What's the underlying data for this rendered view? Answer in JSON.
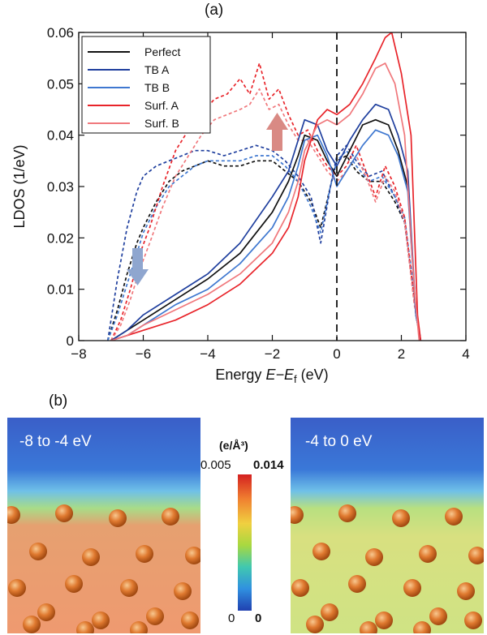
{
  "panel_a": {
    "tag": "(a)"
  },
  "panel_b": {
    "tag": "(b)",
    "left_label": "-8 to -4 eV",
    "right_label": "-4 to 0 eV",
    "colorbar": {
      "unit": "(e/Å³)",
      "top_left": "0.005",
      "top_right": "0.014",
      "bottom_left": "0",
      "bottom_right": "0"
    }
  },
  "colors": {
    "perfect": "#111111",
    "tb_a": "#1f3f9e",
    "tb_b": "#3f78d0",
    "surf_a": "#e8242a",
    "surf_b": "#f0787c",
    "arrow_up": "#d98a84",
    "arrow_down": "#8fa6cf",
    "map_bg": "#3a5fc8",
    "atom": "#d8702a"
  },
  "chart_data": {
    "type": "line",
    "title": "",
    "xlabel": "Energy",
    "xlabel_var": "E−E",
    "xlabel_sub": "f",
    "xlabel_unit": "(eV)",
    "ylabel": "LDOS (1/eV)",
    "xlim": [
      -8,
      4
    ],
    "ylim": [
      0,
      0.06
    ],
    "xticks": [
      -8,
      -6,
      -4,
      -2,
      0,
      2,
      4
    ],
    "yticks": [
      0,
      0.01,
      0.02,
      0.03,
      0.04,
      0.05,
      0.06
    ],
    "ytick_labels": [
      "0",
      "0.01",
      "0.02",
      "0.03",
      "0.04",
      "0.05",
      "0.06"
    ],
    "fermi_line_x": 0,
    "legend": [
      "Perfect",
      "TB A",
      "TB B",
      "Surf. A",
      "Surf. B"
    ],
    "legend_position": "top-left",
    "series": [
      {
        "name": "Perfect",
        "style": "solid",
        "color": "#111111",
        "x": [
          -7,
          -6.5,
          -6,
          -5,
          -4,
          -3,
          -2,
          -1.5,
          -1.2,
          -1,
          -0.6,
          -0.3,
          0,
          0.4,
          0.8,
          1.2,
          1.6,
          1.9,
          2.2,
          2.45,
          2.6
        ],
        "y": [
          0,
          0.002,
          0.004,
          0.008,
          0.012,
          0.017,
          0.025,
          0.031,
          0.036,
          0.04,
          0.039,
          0.035,
          0.032,
          0.037,
          0.042,
          0.043,
          0.042,
          0.037,
          0.03,
          0.005,
          0
        ]
      },
      {
        "name": "TB A",
        "style": "solid",
        "color": "#1f3f9e",
        "x": [
          -7,
          -6.5,
          -6,
          -5,
          -4,
          -3,
          -2,
          -1.5,
          -1.2,
          -1,
          -0.6,
          -0.3,
          0,
          0.4,
          0.8,
          1.2,
          1.6,
          1.9,
          2.2,
          2.45,
          2.6
        ],
        "y": [
          0,
          0.002,
          0.005,
          0.009,
          0.013,
          0.019,
          0.028,
          0.033,
          0.039,
          0.043,
          0.042,
          0.037,
          0.034,
          0.039,
          0.043,
          0.046,
          0.045,
          0.04,
          0.033,
          0.005,
          0
        ]
      },
      {
        "name": "TB B",
        "style": "solid",
        "color": "#3f78d0",
        "x": [
          -7,
          -6.5,
          -6,
          -5,
          -4,
          -3,
          -2,
          -1.5,
          -1.2,
          -1,
          -0.6,
          -0.3,
          0,
          0.4,
          0.8,
          1.2,
          1.6,
          1.9,
          2.2,
          2.45,
          2.6
        ],
        "y": [
          0,
          0.001,
          0.003,
          0.007,
          0.01,
          0.015,
          0.022,
          0.028,
          0.034,
          0.039,
          0.04,
          0.036,
          0.03,
          0.034,
          0.038,
          0.041,
          0.04,
          0.036,
          0.029,
          0.005,
          0
        ]
      },
      {
        "name": "Surf. A",
        "style": "solid",
        "color": "#e8242a",
        "x": [
          -7,
          -6.5,
          -6,
          -5,
          -4,
          -3,
          -2,
          -1.5,
          -1.2,
          -1,
          -0.6,
          -0.3,
          0,
          0.4,
          0.8,
          1.2,
          1.5,
          1.7,
          2.0,
          2.3,
          2.5,
          2.6
        ],
        "y": [
          0,
          0.001,
          0.002,
          0.004,
          0.007,
          0.011,
          0.017,
          0.022,
          0.028,
          0.035,
          0.043,
          0.045,
          0.044,
          0.046,
          0.05,
          0.055,
          0.059,
          0.06,
          0.052,
          0.04,
          0.005,
          0
        ]
      },
      {
        "name": "Surf. B",
        "style": "solid",
        "color": "#f0787c",
        "x": [
          -7,
          -6.5,
          -6,
          -5,
          -4,
          -3,
          -2,
          -1.5,
          -1.2,
          -1,
          -0.6,
          -0.3,
          0,
          0.4,
          0.8,
          1.2,
          1.5,
          1.8,
          2.1,
          2.4,
          2.55
        ],
        "y": [
          0,
          0.001,
          0.003,
          0.006,
          0.009,
          0.013,
          0.019,
          0.025,
          0.031,
          0.037,
          0.042,
          0.043,
          0.042,
          0.044,
          0.048,
          0.053,
          0.054,
          0.05,
          0.04,
          0.01,
          0
        ]
      },
      {
        "name": "Perfect (dashed)",
        "style": "dashed",
        "color": "#111111",
        "x": [
          -7.1,
          -6.8,
          -6.5,
          -6.2,
          -6,
          -5.6,
          -5.2,
          -4.8,
          -4.4,
          -4,
          -3.5,
          -3,
          -2.5,
          -2,
          -1.6,
          -1.2,
          -0.8,
          -0.5,
          -0.2,
          0,
          0.3,
          0.6,
          1,
          1.4,
          1.8,
          2.1,
          2.4,
          2.6
        ],
        "y": [
          0,
          0.006,
          0.013,
          0.019,
          0.022,
          0.027,
          0.031,
          0.033,
          0.034,
          0.035,
          0.034,
          0.034,
          0.035,
          0.035,
          0.033,
          0.031,
          0.027,
          0.022,
          0.03,
          0.035,
          0.036,
          0.033,
          0.031,
          0.031,
          0.027,
          0.023,
          0.008,
          0
        ]
      },
      {
        "name": "TB A (dashed)",
        "style": "dashed",
        "color": "#1f3f9e",
        "x": [
          -7.1,
          -6.8,
          -6.5,
          -6.2,
          -6,
          -5.6,
          -5.2,
          -4.8,
          -4.4,
          -4,
          -3.5,
          -3,
          -2.5,
          -2,
          -1.6,
          -1.2,
          -0.8,
          -0.5,
          -0.2,
          0,
          0.3,
          0.6,
          1,
          1.4,
          1.8,
          2.1,
          2.4,
          2.6
        ],
        "y": [
          0,
          0.012,
          0.022,
          0.029,
          0.032,
          0.034,
          0.035,
          0.036,
          0.037,
          0.037,
          0.036,
          0.037,
          0.038,
          0.037,
          0.035,
          0.032,
          0.028,
          0.019,
          0.03,
          0.036,
          0.038,
          0.035,
          0.032,
          0.033,
          0.028,
          0.023,
          0.008,
          0
        ]
      },
      {
        "name": "TB B (dashed)",
        "style": "dashed",
        "color": "#3f78d0",
        "x": [
          -7.1,
          -6.8,
          -6.5,
          -6.2,
          -6,
          -5.6,
          -5.2,
          -4.8,
          -4.4,
          -4,
          -3.5,
          -3,
          -2.5,
          -2,
          -1.6,
          -1.2,
          -0.8,
          -0.5,
          -0.2,
          0,
          0.3,
          0.6,
          1,
          1.4,
          1.8,
          2.1,
          2.4,
          2.6
        ],
        "y": [
          0,
          0.005,
          0.011,
          0.017,
          0.021,
          0.026,
          0.03,
          0.032,
          0.034,
          0.035,
          0.035,
          0.035,
          0.036,
          0.036,
          0.034,
          0.031,
          0.026,
          0.021,
          0.03,
          0.035,
          0.037,
          0.034,
          0.031,
          0.032,
          0.028,
          0.024,
          0.009,
          0
        ]
      },
      {
        "name": "Surf. A (dashed)",
        "style": "dashed",
        "color": "#e8242a",
        "x": [
          -7,
          -6.7,
          -6.4,
          -6.1,
          -5.8,
          -5.4,
          -5,
          -4.6,
          -4.2,
          -3.8,
          -3.4,
          -3,
          -2.7,
          -2.4,
          -2.1,
          -1.8,
          -1.5,
          -1.2,
          -0.9,
          -0.6,
          -0.3,
          0,
          0.3,
          0.6,
          0.9,
          1.2,
          1.5,
          1.8,
          2.1,
          2.4,
          2.6
        ],
        "y": [
          0,
          0.004,
          0.01,
          0.017,
          0.022,
          0.03,
          0.037,
          0.041,
          0.044,
          0.047,
          0.048,
          0.051,
          0.048,
          0.054,
          0.047,
          0.049,
          0.044,
          0.04,
          0.041,
          0.037,
          0.034,
          0.032,
          0.034,
          0.038,
          0.033,
          0.028,
          0.034,
          0.03,
          0.024,
          0.008,
          0
        ]
      },
      {
        "name": "Surf. B (dashed)",
        "style": "dashed",
        "color": "#f0787c",
        "x": [
          -7,
          -6.7,
          -6.4,
          -6.1,
          -5.8,
          -5.4,
          -5,
          -4.6,
          -4.2,
          -3.8,
          -3.4,
          -3,
          -2.7,
          -2.4,
          -2.1,
          -1.8,
          -1.5,
          -1.2,
          -0.9,
          -0.6,
          -0.3,
          0,
          0.3,
          0.6,
          0.9,
          1.2,
          1.5,
          1.8,
          2.1,
          2.4,
          2.6
        ],
        "y": [
          0,
          0.003,
          0.008,
          0.014,
          0.019,
          0.026,
          0.032,
          0.036,
          0.04,
          0.043,
          0.044,
          0.045,
          0.046,
          0.049,
          0.045,
          0.046,
          0.042,
          0.039,
          0.039,
          0.036,
          0.033,
          0.031,
          0.033,
          0.036,
          0.032,
          0.027,
          0.032,
          0.029,
          0.023,
          0.007,
          0
        ]
      }
    ]
  }
}
